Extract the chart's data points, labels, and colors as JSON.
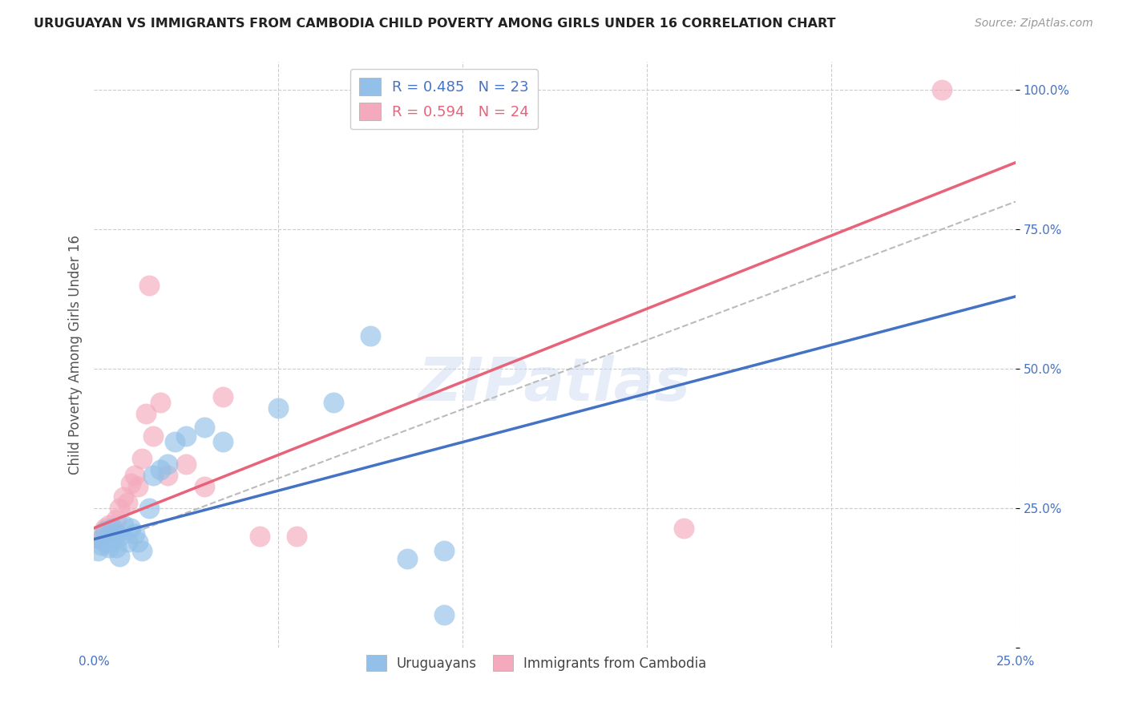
{
  "title": "URUGUAYAN VS IMMIGRANTS FROM CAMBODIA CHILD POVERTY AMONG GIRLS UNDER 16 CORRELATION CHART",
  "source": "Source: ZipAtlas.com",
  "ylabel": "Child Poverty Among Girls Under 16",
  "xlabel": "",
  "xlim": [
    0.0,
    0.25
  ],
  "ylim": [
    0.0,
    1.05
  ],
  "yticks": [
    0.0,
    0.25,
    0.5,
    0.75,
    1.0
  ],
  "ytick_labels": [
    "",
    "25.0%",
    "50.0%",
    "75.0%",
    "100.0%"
  ],
  "xticks": [
    0.0,
    0.05,
    0.1,
    0.15,
    0.2,
    0.25
  ],
  "xtick_labels": [
    "0.0%",
    "",
    "",
    "",
    "",
    "25.0%"
  ],
  "blue_color": "#92C0E8",
  "pink_color": "#F4AABC",
  "blue_line_color": "#4472C4",
  "pink_line_color": "#E8627A",
  "dashed_line_color": "#BBBBBB",
  "watermark": "ZIPatlas",
  "uruguayan_x": [
    0.001,
    0.002,
    0.002,
    0.003,
    0.003,
    0.004,
    0.004,
    0.005,
    0.005,
    0.006,
    0.006,
    0.007,
    0.007,
    0.008,
    0.009,
    0.01,
    0.011,
    0.012,
    0.013,
    0.015,
    0.016,
    0.018,
    0.02,
    0.022,
    0.025,
    0.03,
    0.035,
    0.05,
    0.065,
    0.075,
    0.085,
    0.095,
    0.095
  ],
  "uruguayan_y": [
    0.175,
    0.185,
    0.195,
    0.19,
    0.21,
    0.18,
    0.2,
    0.195,
    0.215,
    0.18,
    0.205,
    0.165,
    0.2,
    0.22,
    0.19,
    0.215,
    0.205,
    0.19,
    0.175,
    0.25,
    0.31,
    0.32,
    0.33,
    0.37,
    0.38,
    0.395,
    0.37,
    0.43,
    0.44,
    0.56,
    0.16,
    0.175,
    0.06
  ],
  "cambodia_x": [
    0.001,
    0.002,
    0.003,
    0.004,
    0.005,
    0.006,
    0.007,
    0.008,
    0.009,
    0.01,
    0.011,
    0.012,
    0.013,
    0.014,
    0.015,
    0.016,
    0.018,
    0.02,
    0.025,
    0.03,
    0.035,
    0.045,
    0.055,
    0.16,
    0.23
  ],
  "cambodia_y": [
    0.2,
    0.195,
    0.215,
    0.22,
    0.21,
    0.23,
    0.25,
    0.27,
    0.26,
    0.295,
    0.31,
    0.29,
    0.34,
    0.42,
    0.65,
    0.38,
    0.44,
    0.31,
    0.33,
    0.29,
    0.45,
    0.2,
    0.2,
    0.215,
    1.0
  ],
  "blue_line_x0": 0.0,
  "blue_line_y0": 0.195,
  "blue_line_x1": 0.25,
  "blue_line_y1": 0.63,
  "pink_line_x0": 0.0,
  "pink_line_y0": 0.215,
  "pink_line_x1": 0.25,
  "pink_line_y1": 0.87,
  "diag_line_x0": 0.0,
  "diag_line_y0": 0.18,
  "diag_line_x1": 0.25,
  "diag_line_y1": 0.8
}
